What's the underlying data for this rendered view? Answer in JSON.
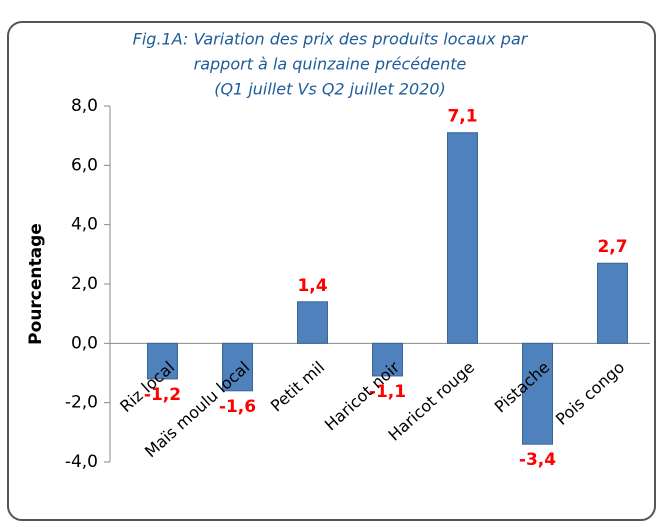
{
  "chart_data": {
    "type": "bar",
    "title": [
      "Fig.1A: Variation des prix des produits locaux par",
      "rapport à la quinzaine précédente",
      "(Q1 juillet Vs Q2 juillet 2020)"
    ],
    "y_label": "Pourcentage",
    "categories": [
      "Riz local",
      "Maïs moulu local",
      "Petit mil",
      "Haricot noir",
      "Haricot rouge",
      "Pistache",
      "Pois congo"
    ],
    "values": [
      -1.2,
      -1.6,
      1.4,
      -1.1,
      7.1,
      -3.4,
      2.7
    ],
    "value_labels": [
      "-1,2",
      "-1,6",
      "1,4",
      "-1,1",
      "7,1",
      "-3,4",
      "2,7"
    ],
    "color": "#4f81bd",
    "label_color": "#ff0000",
    "ylim": [
      -4,
      8
    ],
    "yticks": [
      {
        "value": 8,
        "label": "8,0"
      },
      {
        "value": 6,
        "label": "6,0"
      },
      {
        "value": 4,
        "label": "4,0"
      },
      {
        "value": 2,
        "label": "2,0"
      },
      {
        "value": 0,
        "label": "0,0"
      },
      {
        "value": -2,
        "label": "-2,0"
      },
      {
        "value": -4,
        "label": "-4,0"
      }
    ],
    "grid": false
  }
}
